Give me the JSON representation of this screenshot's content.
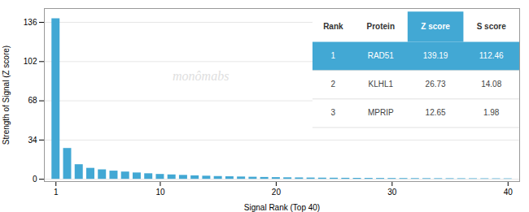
{
  "chart_data": {
    "type": "bar",
    "x": [
      1,
      2,
      3,
      4,
      5,
      6,
      7,
      8,
      9,
      10,
      11,
      12,
      13,
      14,
      15,
      16,
      17,
      18,
      19,
      20,
      21,
      22,
      23,
      24,
      25,
      26,
      27,
      28,
      29,
      30,
      31,
      32,
      33,
      34,
      35,
      36,
      37,
      38,
      39,
      40
    ],
    "values": [
      139.19,
      26.73,
      12.65,
      9.5,
      8.2,
      7.1,
      6.3,
      5.5,
      4.8,
      4.2,
      3.8,
      3.4,
      3.0,
      2.7,
      2.4,
      2.2,
      2.0,
      1.8,
      1.6,
      1.45,
      1.3,
      1.2,
      1.1,
      1.0,
      0.95,
      0.88,
      0.82,
      0.77,
      0.72,
      0.68,
      0.64,
      0.6,
      0.57,
      0.54,
      0.51,
      0.48,
      0.46,
      0.44,
      0.42,
      0.4
    ],
    "color": "#42a8d4",
    "xlabel": "Signal Rank (Top 40)",
    "ylabel": "Strength of Signal (Z score)",
    "xlim": [
      0,
      41
    ],
    "xticks": [
      1,
      10,
      20,
      30,
      40
    ],
    "ylim": [
      -2,
      148
    ],
    "yticks": [
      0,
      34,
      68,
      102,
      136
    ],
    "grid": true,
    "annotations": [
      {
        "text": "monômabs",
        "color": "#e0e0e0"
      }
    ],
    "table": {
      "header": [
        {
          "label": "Rank"
        },
        {
          "label": "Protein"
        },
        {
          "label": "Z score",
          "color": "#42a8d4"
        },
        {
          "label": "S score"
        }
      ],
      "rows": [
        {
          "rank": 1,
          "protein": "RAD51",
          "z_score": 139.19,
          "s_score": 112.46,
          "color": "#42a8d4"
        },
        {
          "rank": 2,
          "protein": "KLHL1",
          "z_score": 26.73,
          "s_score": 14.08
        },
        {
          "rank": 3,
          "protein": "MPRIP",
          "z_score": 12.65,
          "s_score": 1.98
        }
      ]
    }
  }
}
